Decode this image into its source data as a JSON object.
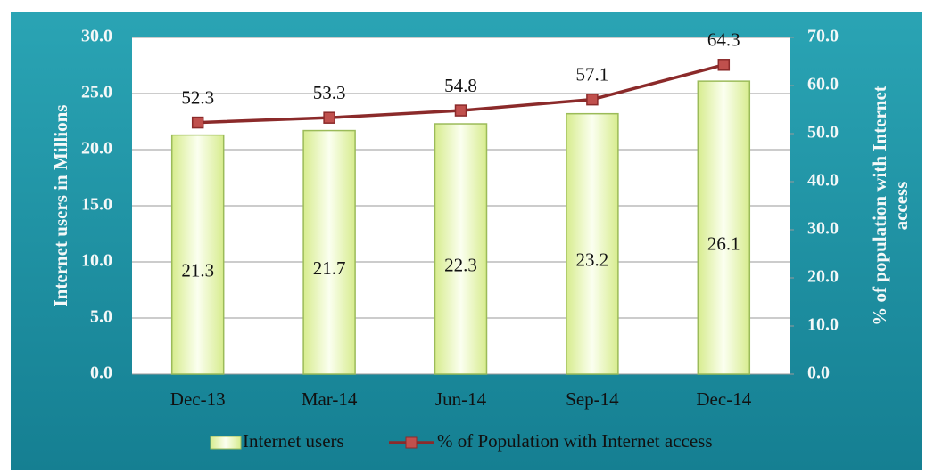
{
  "chart_data": {
    "type": "bar",
    "categories": [
      "Dec-13",
      "Mar-14",
      "Jun-14",
      "Sep-14",
      "Dec-14"
    ],
    "series": [
      {
        "name": "Internet users",
        "type": "bar",
        "color": "#e8f5b0",
        "values": [
          21.3,
          21.7,
          22.3,
          23.2,
          26.1
        ]
      },
      {
        "name": "% of Population with Internet access",
        "type": "line",
        "axis": "y2",
        "color": "#8b2a2a",
        "values": [
          52.3,
          53.3,
          54.8,
          57.1,
          64.3
        ]
      }
    ],
    "ylabel": "Internet users in Millions",
    "y2label": "% of population with Internet access",
    "ylim": [
      0,
      30
    ],
    "yticks": [
      {
        "value": 0,
        "label": "0.0"
      },
      {
        "value": 5,
        "label": "5.0"
      },
      {
        "value": 10,
        "label": "10.0"
      },
      {
        "value": 15,
        "label": "15.0"
      },
      {
        "value": 20,
        "label": "20.0"
      },
      {
        "value": 25,
        "label": "25.0"
      },
      {
        "value": 30,
        "label": "30.0"
      }
    ],
    "y2lim": [
      0,
      70
    ],
    "y2ticks": [
      {
        "value": 0,
        "label": "0.0"
      },
      {
        "value": 10,
        "label": "10.0"
      },
      {
        "value": 20,
        "label": "20.0"
      },
      {
        "value": 30,
        "label": "30.0"
      },
      {
        "value": 40,
        "label": "40.0"
      },
      {
        "value": 50,
        "label": "50.0"
      },
      {
        "value": 60,
        "label": "60.0"
      },
      {
        "value": 70,
        "label": "70.0"
      }
    ],
    "grid": true,
    "legend": "bottom"
  }
}
